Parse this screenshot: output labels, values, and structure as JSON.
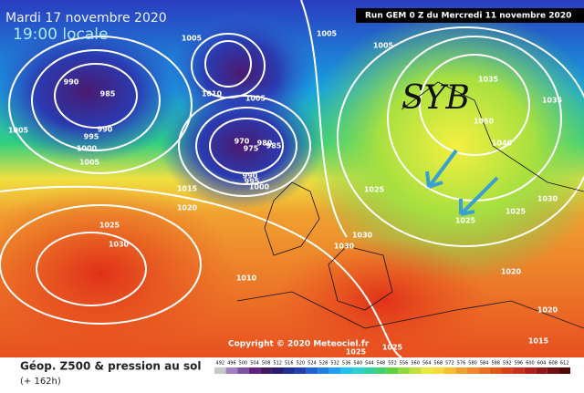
{
  "header": {
    "date": "Mardi 17 novembre 2020",
    "time": "19:00 locale",
    "run": "Run GEM 0 Z du Mercredi 11 novembre 2020"
  },
  "annotation": "SYB",
  "copyright": "Copyright © 2020 Meteociel.fr",
  "footer": {
    "title": "Géop. Z500 & pression au sol",
    "lead": "(+ 162h)"
  },
  "isobar_labels": [
    1005,
    1005,
    1005,
    990,
    985,
    990,
    995,
    1000,
    1005,
    1005,
    1010,
    1005,
    970,
    975,
    980,
    985,
    990,
    995,
    1000,
    1015,
    1020,
    1025,
    1030,
    1025,
    1030,
    1030,
    1010,
    1050,
    1040,
    1035,
    1035,
    1025,
    1025,
    1030,
    1020,
    1020,
    1015,
    1025,
    1025
  ],
  "colorbar_labels": [
    492,
    496,
    500,
    504,
    508,
    512,
    516,
    520,
    524,
    528,
    532,
    536,
    540,
    544,
    548,
    552,
    556,
    560,
    564,
    568,
    572,
    576,
    580,
    584,
    588,
    592,
    596,
    600,
    604,
    608,
    612
  ]
}
